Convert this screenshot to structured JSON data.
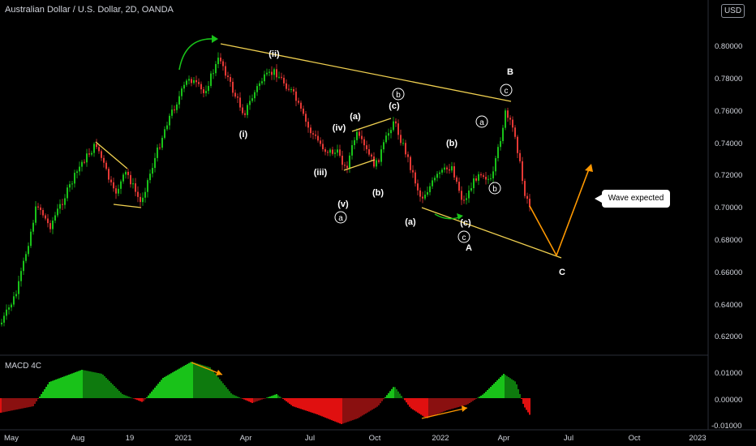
{
  "header": {
    "title": "Australian Dollar / U.S. Dollar, 2D, OANDA",
    "currency": "USD"
  },
  "price_axis": [
    "0.80000",
    "0.78000",
    "0.76000",
    "0.74000",
    "0.72000",
    "0.70000",
    "0.68000",
    "0.66000",
    "0.64000",
    "0.62000"
  ],
  "macd_axis": [
    "0.01000",
    "0.00000",
    "-0.01000"
  ],
  "time_axis": [
    "May",
    "Aug",
    "19",
    "2021",
    "Apr",
    "Jul",
    "Oct",
    "2022",
    "Apr",
    "Jul",
    "Oct",
    "2023"
  ],
  "indicator": {
    "name": "MACD 4C"
  },
  "callout": {
    "text": "Wave expected"
  },
  "labels": {
    "ii": "(ii)",
    "i": "(i)",
    "iii": "(iii)",
    "iv": "(iv)",
    "v": "(v)",
    "a1": "(a)",
    "b1": "(b)",
    "c1": "(c)",
    "a2": "(a)",
    "b2": "(b)",
    "c2": "(c)",
    "A": "A",
    "B": "B",
    "C": "C",
    "circ_a": "a",
    "circ_b": "b",
    "circ_c": "c"
  },
  "colors": {
    "up": "#26a69a",
    "up_bright": "#19c219",
    "down": "#e53935",
    "trendline": "#f0d050",
    "projection": "#ff9800",
    "arrow": "#19c219",
    "label": "#ffffff"
  }
}
